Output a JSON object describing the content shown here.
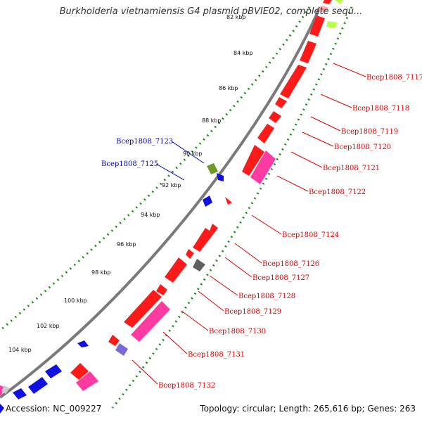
{
  "title": "Burkholderia vietnamiensis G4 plasmid pBVIE02, complete sequ...",
  "footer": {
    "accession": "Accession: NC_009227",
    "summary": "Topology: circular; Length: 265,616 bp; Genes: 263"
  },
  "colors": {
    "backbone": "#808080",
    "tick_ring": "#1a8a1a",
    "forward_label": "#e00000",
    "reverse_label": "#0000cc",
    "gene_red": "#ff1a1a",
    "gene_pink": "#ff3aa0",
    "gene_blue": "#1010e0",
    "gene_purple": "#7a6ad8",
    "gene_olive": "#6f9a2a",
    "gene_gray": "#606060",
    "gene_lime": "#b6ff4a"
  },
  "ticks": [
    "84 kbp",
    "86 kbp",
    "88 kbp",
    "90 kbp",
    "92 kbp",
    "94 kbp",
    "96 kbp",
    "98 kbp",
    "100 kbp",
    "102 kbp",
    "104 kbp"
  ],
  "top_tick_partial": "82 kbp",
  "gene_labels_forward": [
    "Bcep1808_7117",
    "Bcep1808_7118",
    "Bcep1808_7119",
    "Bcep1808_7120",
    "Bcep1808_7121",
    "Bcep1808_7122",
    "Bcep1808_7124",
    "Bcep1808_7126",
    "Bcep1808_7127",
    "Bcep1808_7128",
    "Bcep1808_7129",
    "Bcep1808_7130",
    "Bcep1808_7131",
    "Bcep1808_7132"
  ],
  "gene_labels_reverse": [
    "Bcep1808_7123",
    "Bcep1808_7125"
  ]
}
